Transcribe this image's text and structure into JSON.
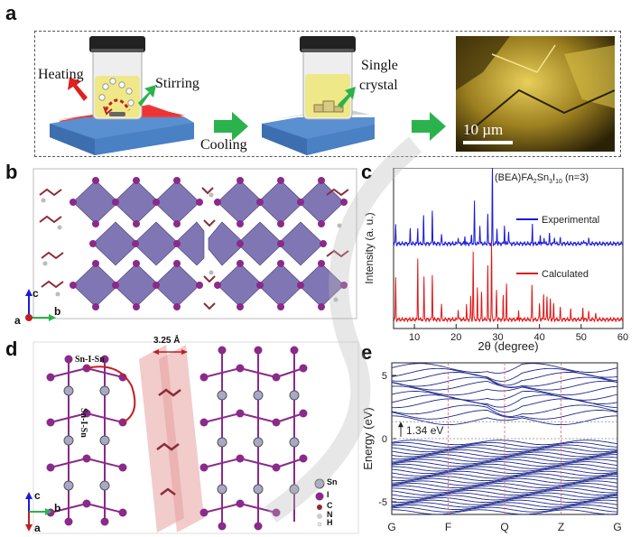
{
  "panels": {
    "a": "a",
    "b": "b",
    "c": "c",
    "d": "d",
    "e": "e"
  },
  "panel_a": {
    "heating": "Heating",
    "stirring": "Stirring",
    "cooling": "Cooling",
    "single": "Single",
    "crystal": "crystal",
    "scale": "10 µm"
  },
  "panel_b": {
    "axis_c": "c",
    "axis_a": "a",
    "axis_b": "b"
  },
  "panel_d": {
    "sn_i_sn_h": "Sn-I-Sn",
    "sn_i_sn_v": "Sn-I-Sn",
    "distance": "3.25 Å",
    "axis_c": "c",
    "axis_b": "b",
    "axis_a": "a",
    "legend": [
      "Sn",
      "I",
      "C",
      "N",
      "H"
    ]
  },
  "colors": {
    "octahedra": "#7b6fb0",
    "iodine": "#8a2a8a",
    "carbon": "#8b2b3a",
    "xrd_exp": "#1a1adb",
    "xrd_calc": "#e01818",
    "band": "#1f2a8c",
    "arrow_green": "#2bb24c",
    "arrow_red": "#e02020",
    "vline": "#e06070",
    "stage_top": "#e84040",
    "stage_base": "#4a86c8"
  },
  "chart_data": [
    {
      "type": "line",
      "panel": "c",
      "title": "(BEA)FA2Sn3I10 (n=3)",
      "title_parts": {
        "pre": "(BEA)FA",
        "s1": "2",
        "mid": "Sn",
        "s2": "3",
        "mid2": "I",
        "s3": "10",
        "post": " (n=3)"
      },
      "xlabel": "2θ (degree)",
      "ylabel": "Intensity (a. u.)",
      "xlim": [
        5,
        60
      ],
      "xticks": [
        10,
        20,
        30,
        40,
        50,
        60
      ],
      "series": [
        {
          "name": "Experimental",
          "peaks": [
            [
              5.5,
              0.25
            ],
            [
              9.0,
              0.2
            ],
            [
              10.8,
              0.2
            ],
            [
              12.2,
              0.35
            ],
            [
              14.3,
              0.45
            ],
            [
              16.5,
              0.12
            ],
            [
              20.5,
              0.1
            ],
            [
              22.1,
              0.1
            ],
            [
              23.7,
              0.12
            ],
            [
              24.4,
              0.55
            ],
            [
              25.7,
              0.25
            ],
            [
              27.6,
              0.38
            ],
            [
              28.7,
              1.0
            ],
            [
              29.8,
              0.2
            ],
            [
              31.6,
              0.25
            ],
            [
              32.6,
              0.18
            ],
            [
              38.3,
              0.25
            ],
            [
              40.2,
              0.12
            ],
            [
              41.1,
              0.1
            ],
            [
              42.4,
              0.12
            ],
            [
              43.6,
              0.1
            ],
            [
              45.0,
              0.07
            ],
            [
              50.6,
              0.07
            ],
            [
              51.8,
              0.06
            ]
          ]
        },
        {
          "name": "Calculated",
          "peaks": [
            [
              5.5,
              0.55
            ],
            [
              10.8,
              0.8
            ],
            [
              12.3,
              0.55
            ],
            [
              14.3,
              0.6
            ],
            [
              16.5,
              0.2
            ],
            [
              20.5,
              0.15
            ],
            [
              22.5,
              0.18
            ],
            [
              23.5,
              0.3
            ],
            [
              24.1,
              0.9
            ],
            [
              25.1,
              0.4
            ],
            [
              26.1,
              0.35
            ],
            [
              27.6,
              0.7
            ],
            [
              28.5,
              1.0
            ],
            [
              29.7,
              0.4
            ],
            [
              31.3,
              0.3
            ],
            [
              32.1,
              0.45
            ],
            [
              35.0,
              0.12
            ],
            [
              38.2,
              0.45
            ],
            [
              40.0,
              0.22
            ],
            [
              41.0,
              0.35
            ],
            [
              41.8,
              0.32
            ],
            [
              42.6,
              0.28
            ],
            [
              43.4,
              0.2
            ],
            [
              45.0,
              0.15
            ],
            [
              47.5,
              0.12
            ],
            [
              50.4,
              0.15
            ],
            [
              51.8,
              0.1
            ],
            [
              53.5,
              0.08
            ]
          ]
        }
      ]
    },
    {
      "type": "line",
      "panel": "e",
      "ylabel": "Energy (eV)",
      "ylim": [
        -6,
        6
      ],
      "yticks": [
        5,
        0,
        -5
      ],
      "kpoints": [
        "G",
        "F",
        "Q",
        "Z",
        "G"
      ],
      "gap_label": "1.34 eV",
      "gap_ev": 1.34,
      "vbm": 0,
      "cbm": 1.34
    }
  ]
}
